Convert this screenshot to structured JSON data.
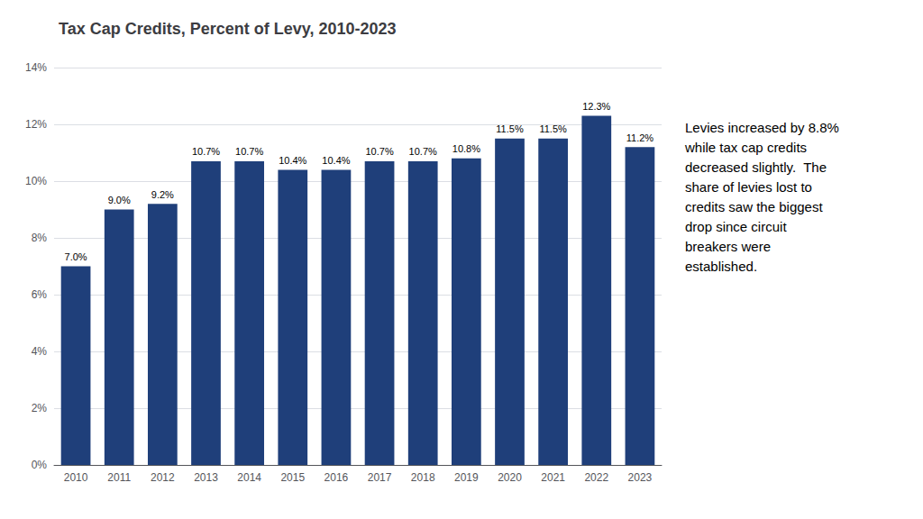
{
  "chart_data": {
    "type": "bar",
    "title": "Tax Cap Credits, Percent of Levy, 2010-2023",
    "categories": [
      "2010",
      "2011",
      "2012",
      "2013",
      "2014",
      "2015",
      "2016",
      "2017",
      "2018",
      "2019",
      "2020",
      "2021",
      "2022",
      "2023"
    ],
    "values": [
      0.07,
      0.09,
      0.092,
      0.107,
      0.107,
      0.104,
      0.104,
      0.107,
      0.107,
      0.108,
      0.115,
      0.115,
      0.123,
      0.112
    ],
    "value_labels": [
      "7.0%",
      "9.0%",
      "9.2%",
      "10.7%",
      "10.7%",
      "10.4%",
      "10.4%",
      "10.7%",
      "10.7%",
      "10.8%",
      "11.5%",
      "11.5%",
      "12.3%",
      "11.2%"
    ],
    "data_labels": true,
    "color": "#1F3F7A",
    "ylim": [
      0,
      0.14
    ],
    "yticks": [
      {
        "value": 0,
        "label": "0%"
      },
      {
        "value": 0.02,
        "label": "2%"
      },
      {
        "value": 0.04,
        "label": "4%"
      },
      {
        "value": 0.06,
        "label": "6%"
      },
      {
        "value": 0.08,
        "label": "8%"
      },
      {
        "value": 0.1,
        "label": "10%"
      },
      {
        "value": 0.12,
        "label": "12%"
      },
      {
        "value": 0.14,
        "label": "14%"
      }
    ],
    "grid": true,
    "annotation": "Levies increased by 8.8%\nwhile tax cap credits\ndecreased slightly.  The\nshare of levies lost to\ncredits saw the biggest\ndrop since circuit\nbreakers were\nestablished."
  }
}
